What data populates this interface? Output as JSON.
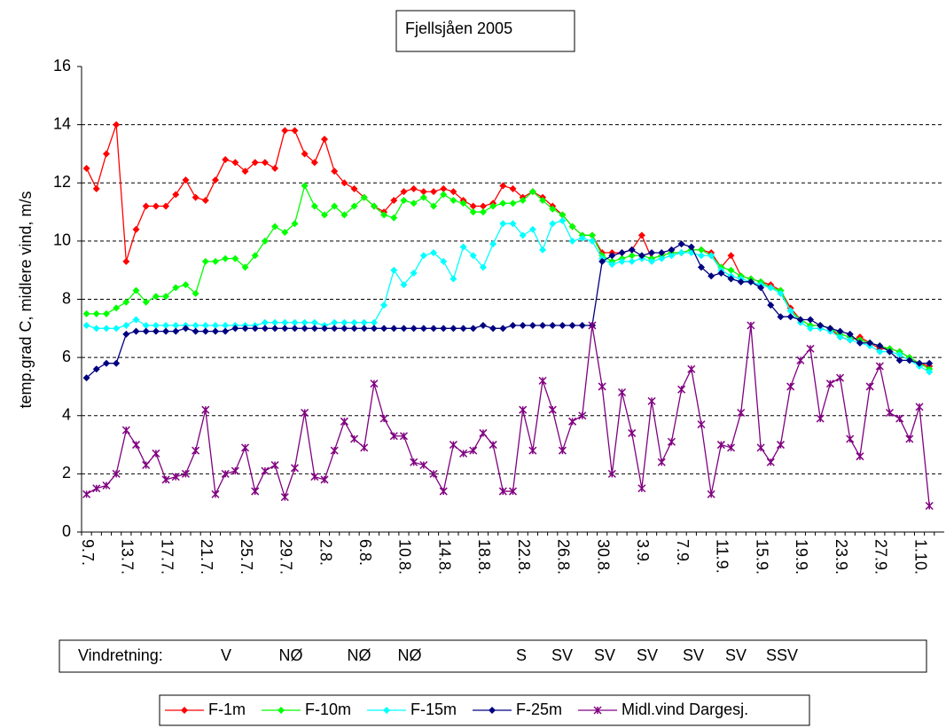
{
  "chart_data": {
    "type": "line",
    "title": "Fjellsjåen 2005",
    "y_label": "temp.grad C, midlere vind, m/s",
    "ylim": [
      0,
      16
    ],
    "yticks": [
      0,
      2,
      4,
      6,
      8,
      10,
      12,
      14,
      16
    ],
    "grid": true,
    "legend": "bottom",
    "categories": [
      "9.7.",
      null,
      null,
      null,
      "13.7.",
      null,
      null,
      null,
      "17.7.",
      null,
      null,
      null,
      "21.7.",
      null,
      null,
      null,
      "25.7.",
      null,
      null,
      null,
      "29.7.",
      null,
      null,
      null,
      "2.8.",
      null,
      null,
      null,
      "6.8.",
      null,
      null,
      null,
      "10.8.",
      null,
      null,
      null,
      "14.8.",
      null,
      null,
      null,
      "18.8.",
      null,
      null,
      null,
      "22.8.",
      null,
      null,
      null,
      "26.8.",
      null,
      null,
      null,
      "30.8.",
      null,
      null,
      null,
      "3.9.",
      null,
      null,
      null,
      "7.9.",
      null,
      null,
      null,
      "11.9.",
      null,
      null,
      null,
      "15.9.",
      null,
      null,
      null,
      "19.9.",
      null,
      null,
      null,
      "23.9.",
      null,
      null,
      null,
      "27.9.",
      null,
      null,
      null,
      "1.10.",
      null,
      null
    ],
    "series": [
      {
        "name": "F-1m",
        "color": "#ff0000",
        "marker": "diamond",
        "values": [
          12.5,
          11.8,
          13.0,
          14.0,
          9.3,
          10.4,
          11.2,
          11.2,
          11.2,
          11.6,
          12.1,
          11.5,
          11.4,
          12.1,
          12.8,
          12.7,
          12.4,
          12.7,
          12.7,
          12.5,
          13.8,
          13.8,
          13.0,
          12.7,
          13.5,
          12.4,
          12.0,
          11.8,
          11.5,
          11.2,
          11.0,
          11.4,
          11.7,
          11.8,
          11.7,
          11.7,
          11.8,
          11.7,
          11.4,
          11.2,
          11.2,
          11.3,
          11.9,
          11.8,
          11.5,
          11.7,
          11.5,
          11.2,
          10.9,
          10.5,
          10.2,
          10.2,
          9.6,
          9.6,
          9.6,
          9.7,
          10.2,
          9.4,
          9.5,
          9.6,
          9.6,
          9.7,
          9.7,
          9.6,
          9.1,
          9.5,
          8.8,
          8.7,
          8.6,
          8.5,
          8.3,
          7.7,
          7.3,
          7.1,
          7.1,
          7.0,
          6.7,
          6.6,
          6.7,
          6.5,
          6.3,
          6.3,
          6.2,
          6.0,
          5.8,
          5.7,
          null
        ]
      },
      {
        "name": "F-10m",
        "color": "#00ff00",
        "marker": "diamond",
        "values": [
          7.5,
          7.5,
          7.5,
          7.7,
          7.9,
          8.3,
          7.9,
          8.1,
          8.1,
          8.4,
          8.5,
          8.2,
          9.3,
          9.3,
          9.4,
          9.4,
          9.1,
          9.5,
          10.0,
          10.5,
          10.3,
          10.6,
          11.9,
          11.2,
          10.9,
          11.2,
          10.9,
          11.2,
          11.5,
          11.2,
          10.9,
          10.8,
          11.4,
          11.3,
          11.5,
          11.2,
          11.6,
          11.4,
          11.3,
          11.0,
          11.0,
          11.2,
          11.3,
          11.3,
          11.4,
          11.7,
          11.4,
          11.1,
          10.9,
          10.5,
          10.2,
          10.2,
          9.5,
          9.3,
          9.4,
          9.5,
          9.5,
          9.4,
          9.5,
          9.6,
          9.6,
          9.7,
          9.7,
          9.5,
          9.1,
          9.0,
          8.8,
          8.7,
          8.6,
          8.4,
          8.3,
          7.6,
          7.3,
          7.1,
          7.1,
          7.0,
          6.8,
          6.7,
          6.6,
          6.5,
          6.4,
          6.3,
          6.2,
          6.0,
          5.8,
          5.6,
          null
        ]
      },
      {
        "name": "F-15m",
        "color": "#00ffff",
        "marker": "diamond",
        "values": [
          7.1,
          7.0,
          7.0,
          7.0,
          7.1,
          7.3,
          7.1,
          7.1,
          7.1,
          7.1,
          7.1,
          7.1,
          7.1,
          7.1,
          7.1,
          7.1,
          7.1,
          7.1,
          7.2,
          7.2,
          7.2,
          7.2,
          7.2,
          7.2,
          7.1,
          7.2,
          7.2,
          7.2,
          7.2,
          7.2,
          7.8,
          9.0,
          8.5,
          8.9,
          9.5,
          9.6,
          9.3,
          8.7,
          9.8,
          9.5,
          9.1,
          9.9,
          10.6,
          10.6,
          10.2,
          10.4,
          9.7,
          10.6,
          10.7,
          10.0,
          10.1,
          10.0,
          9.4,
          9.2,
          9.3,
          9.3,
          9.4,
          9.3,
          9.4,
          9.5,
          9.6,
          9.6,
          9.5,
          9.5,
          9.0,
          8.8,
          8.7,
          8.6,
          8.5,
          8.4,
          8.2,
          7.6,
          7.2,
          7.0,
          7.0,
          6.9,
          6.7,
          6.6,
          6.5,
          6.4,
          6.2,
          6.2,
          6.1,
          5.9,
          5.7,
          5.5,
          null
        ]
      },
      {
        "name": "F-25m",
        "color": "#000080",
        "marker": "diamond",
        "values": [
          5.3,
          5.6,
          5.8,
          5.8,
          6.8,
          6.9,
          6.9,
          6.9,
          6.9,
          6.9,
          7.0,
          6.9,
          6.9,
          6.9,
          6.9,
          7.0,
          7.0,
          7.0,
          7.0,
          7.0,
          7.0,
          7.0,
          7.0,
          7.0,
          7.0,
          7.0,
          7.0,
          7.0,
          7.0,
          7.0,
          7.0,
          7.0,
          7.0,
          7.0,
          7.0,
          7.0,
          7.0,
          7.0,
          7.0,
          7.0,
          7.1,
          7.0,
          7.0,
          7.1,
          7.1,
          7.1,
          7.1,
          7.1,
          7.1,
          7.1,
          7.1,
          7.1,
          9.3,
          9.5,
          9.6,
          9.7,
          9.5,
          9.6,
          9.6,
          9.7,
          9.9,
          9.8,
          9.1,
          8.8,
          8.9,
          8.7,
          8.6,
          8.6,
          8.4,
          7.8,
          7.4,
          7.4,
          7.3,
          7.3,
          7.1,
          7.0,
          6.9,
          6.8,
          6.5,
          6.5,
          6.4,
          6.2,
          5.9,
          5.9,
          5.8,
          5.8,
          null
        ]
      },
      {
        "name": "Midl.vind Dargesj.",
        "color": "#800080",
        "marker": "star",
        "values": [
          1.3,
          1.5,
          1.6,
          2.0,
          3.5,
          3.0,
          2.3,
          2.7,
          1.8,
          1.9,
          2.0,
          2.8,
          4.2,
          1.3,
          2.0,
          2.1,
          2.9,
          1.4,
          2.1,
          2.3,
          1.2,
          2.2,
          4.1,
          1.9,
          1.8,
          2.8,
          3.8,
          3.2,
          2.9,
          5.1,
          3.9,
          3.3,
          3.3,
          2.4,
          2.3,
          2.0,
          1.4,
          3.0,
          2.7,
          2.8,
          3.4,
          3.0,
          1.4,
          1.4,
          4.2,
          2.8,
          5.2,
          4.2,
          2.8,
          3.8,
          4.0,
          7.1,
          5.0,
          2.0,
          4.8,
          3.4,
          1.5,
          4.5,
          2.4,
          3.1,
          4.9,
          5.6,
          3.7,
          1.3,
          3.0,
          2.9,
          4.1,
          7.1,
          2.9,
          2.4,
          3.0,
          5.0,
          5.9,
          6.3,
          3.9,
          5.1,
          5.3,
          3.2,
          2.6,
          5.0,
          5.7,
          4.1,
          3.9,
          3.2,
          4.3,
          0.9,
          null
        ]
      }
    ],
    "wind_direction": {
      "label": "Vindretning:",
      "items": [
        "V",
        "NØ",
        "NØ",
        "NØ",
        "S",
        "SV",
        "SV",
        "SV",
        "SV",
        "SV",
        "SSV"
      ]
    }
  }
}
